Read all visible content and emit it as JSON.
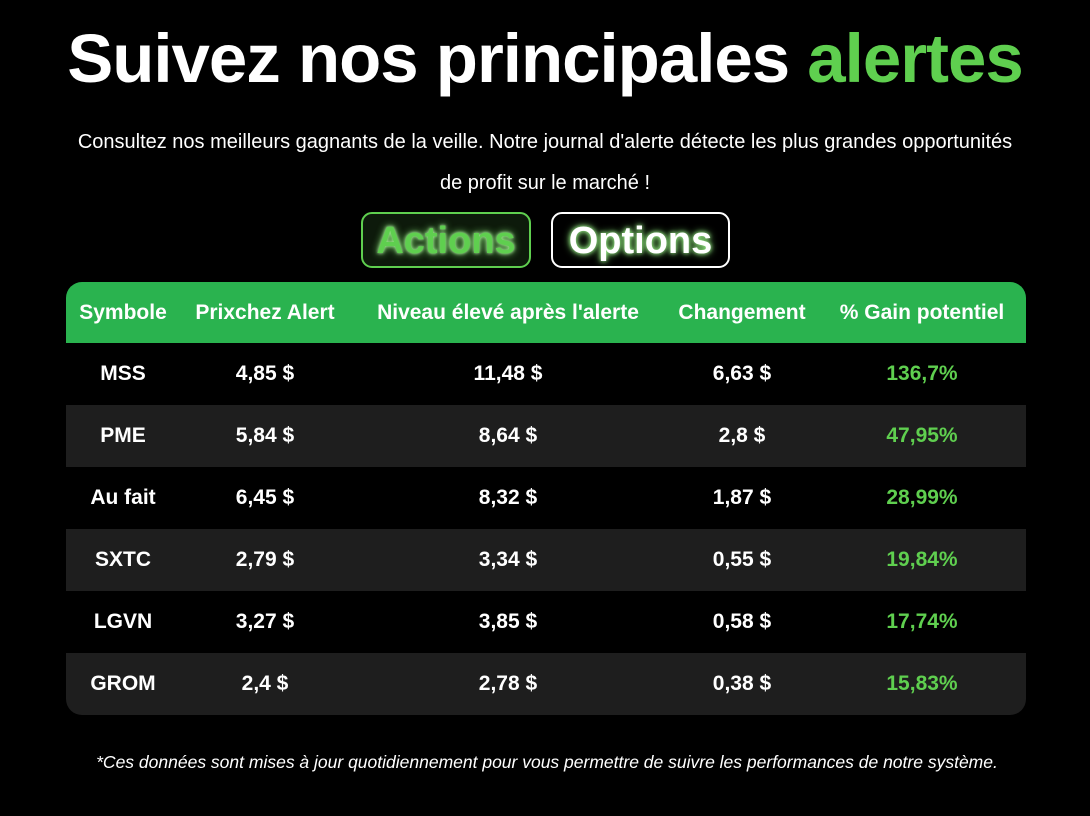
{
  "header": {
    "title_main": "Suivez nos principales",
    "title_accent": "alertes",
    "subtitle_line1": "Consultez nos meilleurs gagnants de la veille. Notre journal d'alerte détecte les plus grandes opportunités",
    "subtitle_line2": "de profit sur le marché !"
  },
  "tabs": [
    {
      "label": "Actions",
      "active": true
    },
    {
      "label": "Options",
      "active": false
    }
  ],
  "table": {
    "columns": [
      "Symbole",
      "Prixchez Alert",
      "Niveau élevé après l'alerte",
      "Changement",
      "% Gain potentiel"
    ],
    "rows": [
      [
        "MSS",
        "4,85 $",
        "11,48 $",
        "6,63 $",
        "136,7%"
      ],
      [
        "PME",
        "5,84 $",
        "8,64 $",
        "2,8 $",
        "47,95%"
      ],
      [
        "Au fait",
        "6,45 $",
        "8,32 $",
        "1,87 $",
        "28,99%"
      ],
      [
        "SXTC",
        "2,79 $",
        "3,34 $",
        "0,55 $",
        "19,84%"
      ],
      [
        "LGVN",
        "3,27 $",
        "3,85 $",
        "0,58 $",
        "17,74%"
      ],
      [
        "GROM",
        "2,4 $",
        "2,78 $",
        "0,38 $",
        "15,83%"
      ]
    ]
  },
  "footnote": "*Ces données sont mises à jour quotidiennement pour vous permettre de suivre les performances de notre système.",
  "colors": {
    "accent_green": "#5fcf4f",
    "header_green": "#2ab34f",
    "background": "#000000",
    "row_alt": "#1e1e1e"
  }
}
